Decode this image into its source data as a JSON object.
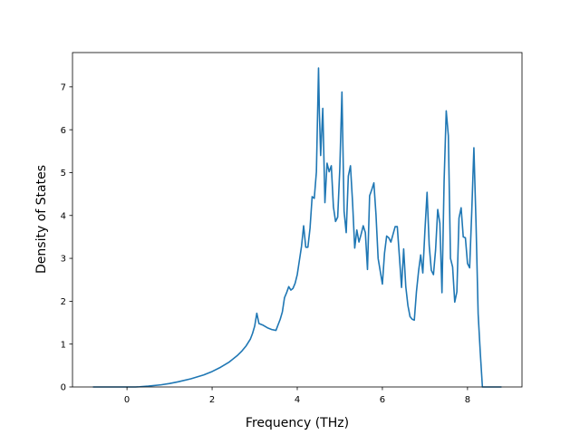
{
  "chart_data": {
    "type": "line",
    "title": "",
    "xlabel": "Frequency (THz)",
    "ylabel": "Density of States",
    "xlim": [
      -1.28,
      9.28
    ],
    "ylim": [
      0,
      7.8
    ],
    "xticks": [
      0,
      2,
      4,
      6,
      8
    ],
    "yticks": [
      0,
      1,
      2,
      3,
      4,
      5,
      6,
      7
    ],
    "xtick_labels": [
      "0",
      "2",
      "4",
      "6",
      "8"
    ],
    "ytick_labels": [
      "0",
      "1",
      "2",
      "3",
      "4",
      "5",
      "6",
      "7"
    ],
    "grid": false,
    "legend": "none",
    "series": [
      {
        "color": "#1f77b4",
        "points": [
          [
            -0.8,
            0
          ],
          [
            0.2,
            0
          ],
          [
            0.3,
            0.005
          ],
          [
            0.5,
            0.02
          ],
          [
            0.8,
            0.05
          ],
          [
            1.0,
            0.08
          ],
          [
            1.2,
            0.12
          ],
          [
            1.5,
            0.19
          ],
          [
            1.8,
            0.28
          ],
          [
            2.0,
            0.36
          ],
          [
            2.2,
            0.46
          ],
          [
            2.4,
            0.58
          ],
          [
            2.6,
            0.74
          ],
          [
            2.7,
            0.84
          ],
          [
            2.8,
            0.96
          ],
          [
            2.9,
            1.12
          ],
          [
            2.95,
            1.25
          ],
          [
            3.0,
            1.42
          ],
          [
            3.05,
            1.72
          ],
          [
            3.1,
            1.48
          ],
          [
            3.2,
            1.44
          ],
          [
            3.3,
            1.38
          ],
          [
            3.4,
            1.34
          ],
          [
            3.5,
            1.32
          ],
          [
            3.55,
            1.45
          ],
          [
            3.6,
            1.58
          ],
          [
            3.65,
            1.75
          ],
          [
            3.7,
            2.08
          ],
          [
            3.75,
            2.2
          ],
          [
            3.8,
            2.34
          ],
          [
            3.85,
            2.26
          ],
          [
            3.9,
            2.3
          ],
          [
            3.95,
            2.42
          ],
          [
            4.0,
            2.62
          ],
          [
            4.05,
            2.95
          ],
          [
            4.1,
            3.28
          ],
          [
            4.15,
            3.76
          ],
          [
            4.2,
            3.26
          ],
          [
            4.25,
            3.26
          ],
          [
            4.3,
            3.7
          ],
          [
            4.35,
            4.44
          ],
          [
            4.4,
            4.4
          ],
          [
            4.45,
            5.02
          ],
          [
            4.5,
            7.44
          ],
          [
            4.52,
            6.4
          ],
          [
            4.55,
            5.4
          ],
          [
            4.6,
            6.5
          ],
          [
            4.65,
            4.3
          ],
          [
            4.7,
            5.22
          ],
          [
            4.75,
            5.02
          ],
          [
            4.8,
            5.16
          ],
          [
            4.85,
            4.2
          ],
          [
            4.9,
            3.86
          ],
          [
            4.95,
            3.96
          ],
          [
            5.0,
            5.1
          ],
          [
            5.05,
            6.88
          ],
          [
            5.1,
            4.1
          ],
          [
            5.15,
            3.6
          ],
          [
            5.2,
            4.92
          ],
          [
            5.25,
            5.16
          ],
          [
            5.3,
            4.3
          ],
          [
            5.35,
            3.24
          ],
          [
            5.4,
            3.66
          ],
          [
            5.45,
            3.38
          ],
          [
            5.5,
            3.56
          ],
          [
            5.55,
            3.76
          ],
          [
            5.6,
            3.6
          ],
          [
            5.65,
            2.74
          ],
          [
            5.7,
            4.46
          ],
          [
            5.75,
            4.6
          ],
          [
            5.8,
            4.76
          ],
          [
            5.85,
            4.02
          ],
          [
            5.9,
            3.0
          ],
          [
            5.95,
            2.7
          ],
          [
            6.0,
            2.4
          ],
          [
            6.05,
            3.12
          ],
          [
            6.1,
            3.52
          ],
          [
            6.15,
            3.48
          ],
          [
            6.2,
            3.38
          ],
          [
            6.25,
            3.56
          ],
          [
            6.3,
            3.74
          ],
          [
            6.35,
            3.74
          ],
          [
            6.4,
            3.04
          ],
          [
            6.45,
            2.32
          ],
          [
            6.5,
            3.22
          ],
          [
            6.55,
            2.34
          ],
          [
            6.6,
            1.9
          ],
          [
            6.65,
            1.64
          ],
          [
            6.7,
            1.58
          ],
          [
            6.75,
            1.56
          ],
          [
            6.8,
            2.22
          ],
          [
            6.85,
            2.7
          ],
          [
            6.9,
            3.08
          ],
          [
            6.95,
            2.66
          ],
          [
            7.0,
            3.66
          ],
          [
            7.05,
            4.54
          ],
          [
            7.1,
            3.3
          ],
          [
            7.15,
            2.72
          ],
          [
            7.2,
            2.62
          ],
          [
            7.25,
            3.2
          ],
          [
            7.3,
            4.14
          ],
          [
            7.35,
            3.82
          ],
          [
            7.4,
            2.2
          ],
          [
            7.45,
            4.8
          ],
          [
            7.5,
            6.44
          ],
          [
            7.55,
            5.86
          ],
          [
            7.6,
            3.0
          ],
          [
            7.65,
            2.8
          ],
          [
            7.7,
            1.98
          ],
          [
            7.75,
            2.22
          ],
          [
            7.8,
            3.94
          ],
          [
            7.85,
            4.18
          ],
          [
            7.9,
            3.5
          ],
          [
            7.95,
            3.48
          ],
          [
            8.0,
            2.88
          ],
          [
            8.05,
            2.78
          ],
          [
            8.1,
            4.1
          ],
          [
            8.15,
            5.58
          ],
          [
            8.2,
            3.82
          ],
          [
            8.25,
            1.7
          ],
          [
            8.3,
            0.8
          ],
          [
            8.35,
            0
          ],
          [
            8.8,
            0
          ]
        ]
      }
    ]
  }
}
